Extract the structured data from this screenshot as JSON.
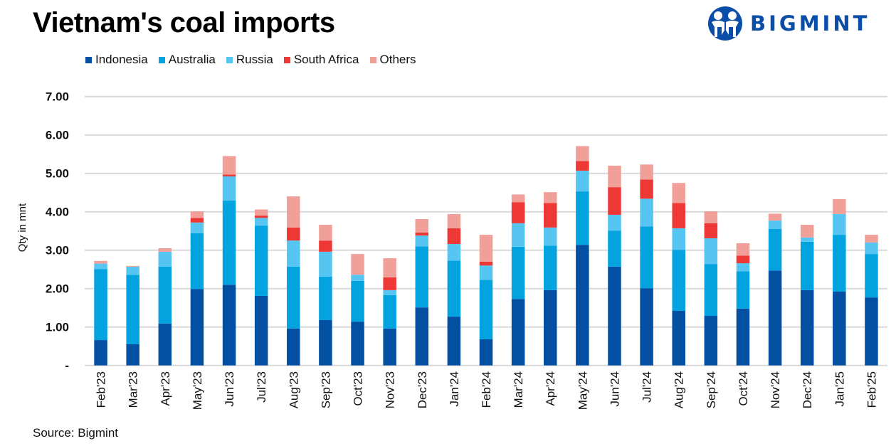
{
  "header": {
    "title": "Vietnam's coal imports",
    "brand": "BIGMINT"
  },
  "footer": {
    "source": "Source: Bigmint"
  },
  "chart_data": {
    "type": "bar",
    "stacked": true,
    "title": "Vietnam's coal imports",
    "xlabel": "",
    "ylabel": "Qty in mnt",
    "ylim": [
      0,
      7
    ],
    "yticks": [
      0,
      1,
      2,
      3,
      4,
      5,
      6,
      7
    ],
    "ytick_labels": [
      "-",
      "1.00",
      "2.00",
      "3.00",
      "4.00",
      "5.00",
      "6.00",
      "7.00"
    ],
    "grid": true,
    "legend_position": "top-left",
    "categories": [
      "Feb'23",
      "Mar'23",
      "Apr'23",
      "May'23",
      "Jun'23",
      "Jul'23",
      "Aug'23",
      "Sep'23",
      "Oct'23",
      "Nov'23",
      "Dec'23",
      "Jan'24",
      "Feb'24",
      "Mar'24",
      "Apr'24",
      "May'24",
      "Jun'24",
      "Jul'24",
      "Aug'24",
      "Sep'24",
      "Oct'24",
      "Nov'24",
      "Dec'24",
      "Jan'25",
      "Feb'25"
    ],
    "series": [
      {
        "name": "Indonesia",
        "color": "#0350A3",
        "values": [
          0.66,
          0.55,
          1.09,
          1.99,
          2.1,
          1.81,
          0.96,
          1.18,
          1.14,
          0.96,
          1.51,
          1.27,
          0.68,
          1.73,
          1.96,
          3.14,
          2.57,
          2.01,
          1.42,
          1.29,
          1.48,
          2.47,
          1.96,
          1.92,
          1.77
        ]
      },
      {
        "name": "Australia",
        "color": "#03A3E0",
        "values": [
          1.85,
          1.81,
          1.48,
          1.45,
          2.19,
          1.83,
          1.61,
          1.13,
          1.06,
          0.87,
          1.59,
          1.46,
          1.55,
          1.36,
          1.16,
          1.39,
          0.94,
          1.61,
          1.59,
          1.35,
          0.97,
          1.08,
          1.26,
          1.48,
          1.13
        ]
      },
      {
        "name": "Russia",
        "color": "#56C5F2",
        "values": [
          0.14,
          0.21,
          0.39,
          0.28,
          0.63,
          0.2,
          0.68,
          0.65,
          0.16,
          0.13,
          0.28,
          0.43,
          0.37,
          0.61,
          0.47,
          0.54,
          0.41,
          0.72,
          0.56,
          0.67,
          0.21,
          0.22,
          0.11,
          0.54,
          0.3
        ]
      },
      {
        "name": "South Africa",
        "color": "#EE3835",
        "values": [
          0.0,
          0.0,
          0.0,
          0.12,
          0.05,
          0.06,
          0.34,
          0.29,
          0.0,
          0.33,
          0.08,
          0.41,
          0.1,
          0.55,
          0.64,
          0.25,
          0.72,
          0.5,
          0.66,
          0.39,
          0.2,
          0.0,
          0.0,
          0.0,
          0.0
        ]
      },
      {
        "name": "Others",
        "color": "#F0A099",
        "values": [
          0.07,
          0.02,
          0.09,
          0.17,
          0.48,
          0.16,
          0.81,
          0.41,
          0.54,
          0.5,
          0.35,
          0.37,
          0.7,
          0.2,
          0.28,
          0.39,
          0.56,
          0.39,
          0.52,
          0.31,
          0.32,
          0.18,
          0.33,
          0.39,
          0.2
        ]
      }
    ]
  }
}
